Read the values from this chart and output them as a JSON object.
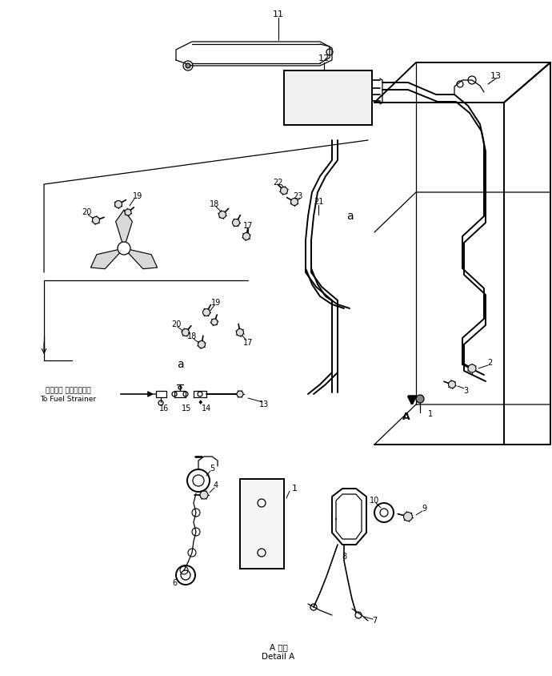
{
  "bg_color": "#ffffff",
  "fig_width": 6.9,
  "fig_height": 8.44,
  "dpi": 100,
  "title": "",
  "label_detail": "A 詳細\nDetail A",
  "label_fuel_jp": "フェエル ストレーナー→",
  "label_fuel_en": "To Fuel Strainer"
}
